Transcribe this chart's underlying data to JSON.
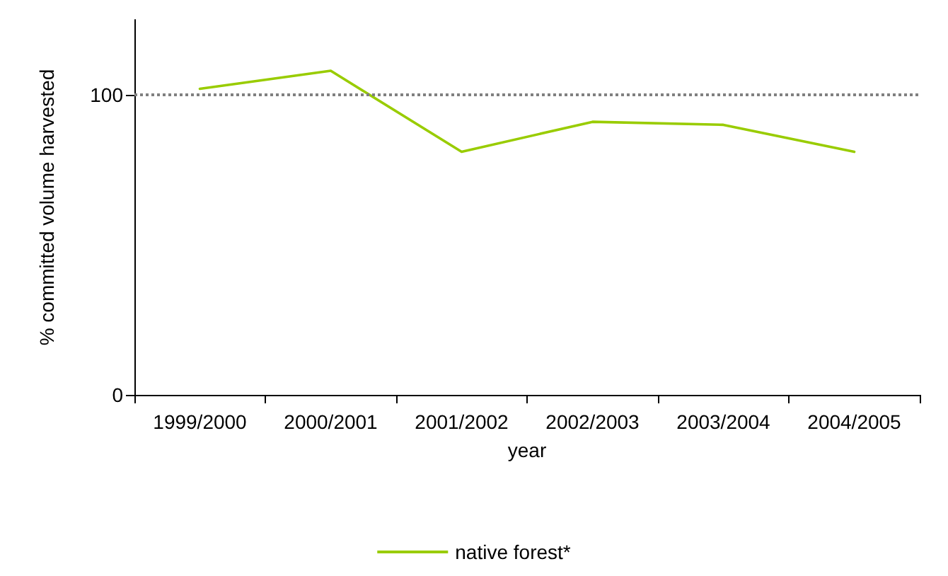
{
  "chart_data": {
    "type": "line",
    "xlabel": "year",
    "ylabel": "% committed volume harvested",
    "categories": [
      "1999/2000",
      "2000/2001",
      "2001/2002",
      "2002/2003",
      "2003/2004",
      "2004/2005"
    ],
    "series": [
      {
        "name": "native forest*",
        "color": "#99cc00",
        "values": [
          102,
          108,
          81,
          91,
          90,
          81
        ]
      }
    ],
    "ylim": [
      0,
      125
    ],
    "yticks": [
      0,
      100
    ],
    "grid": false,
    "legend": "bottom",
    "marker": "none",
    "line_style": "solid",
    "ref_lines": [
      {
        "axis": "y",
        "value": 100,
        "color": "#808080",
        "line_style": "dotted"
      }
    ]
  }
}
